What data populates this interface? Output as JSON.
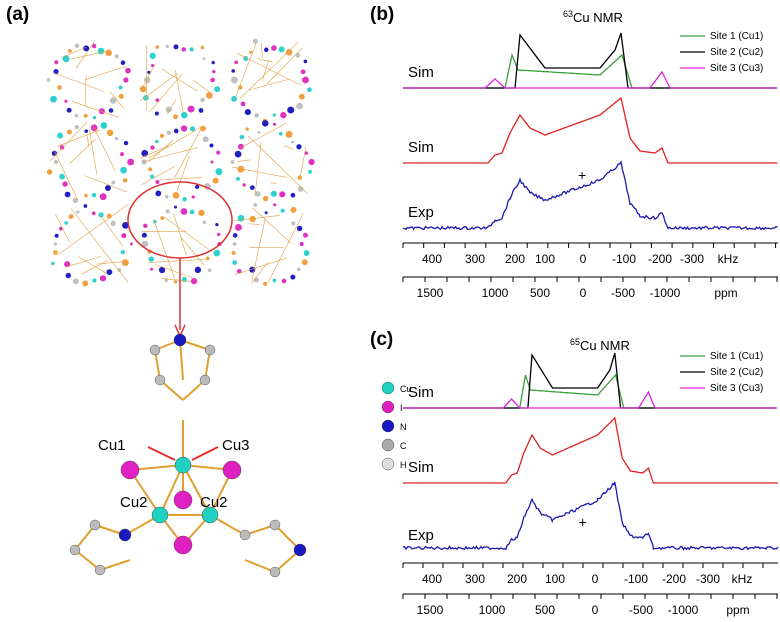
{
  "panels": {
    "a": {
      "label": "(a)",
      "atoms": [
        "Cu",
        "I",
        "N",
        "C",
        "H"
      ],
      "site_labels": [
        "Cu1",
        "Cu3",
        "Cu2",
        "Cu2"
      ]
    },
    "b": {
      "label": "(b)",
      "title_isotope": "63",
      "title_text": "Cu NMR",
      "legend": [
        "Site 1 (Cu1)",
        "Site 2 (Cu2)",
        "Site 3 (Cu3)"
      ],
      "traces": [
        "Sim",
        "Sim",
        "Exp"
      ],
      "marker": "+",
      "khz_ticks": [
        400,
        300,
        200,
        100,
        0,
        -100,
        -200,
        -300
      ],
      "khz_unit": "kHz",
      "ppm_ticks": [
        1500,
        1000,
        500,
        0,
        -500,
        -1000
      ],
      "ppm_unit": "ppm"
    },
    "c": {
      "label": "(c)",
      "title_isotope": "65",
      "title_text": "Cu NMR",
      "legend": [
        "Site 1 (Cu1)",
        "Site 2 (Cu2)",
        "Site 3 (Cu3)"
      ],
      "traces": [
        "Sim",
        "Sim",
        "Exp"
      ],
      "marker": "+",
      "khz_ticks": [
        400,
        300,
        200,
        100,
        0,
        -100,
        -200,
        -300
      ],
      "khz_unit": "kHz",
      "ppm_ticks": [
        1500,
        1000,
        500,
        0,
        -500,
        -1000
      ],
      "ppm_unit": "ppm"
    }
  }
}
